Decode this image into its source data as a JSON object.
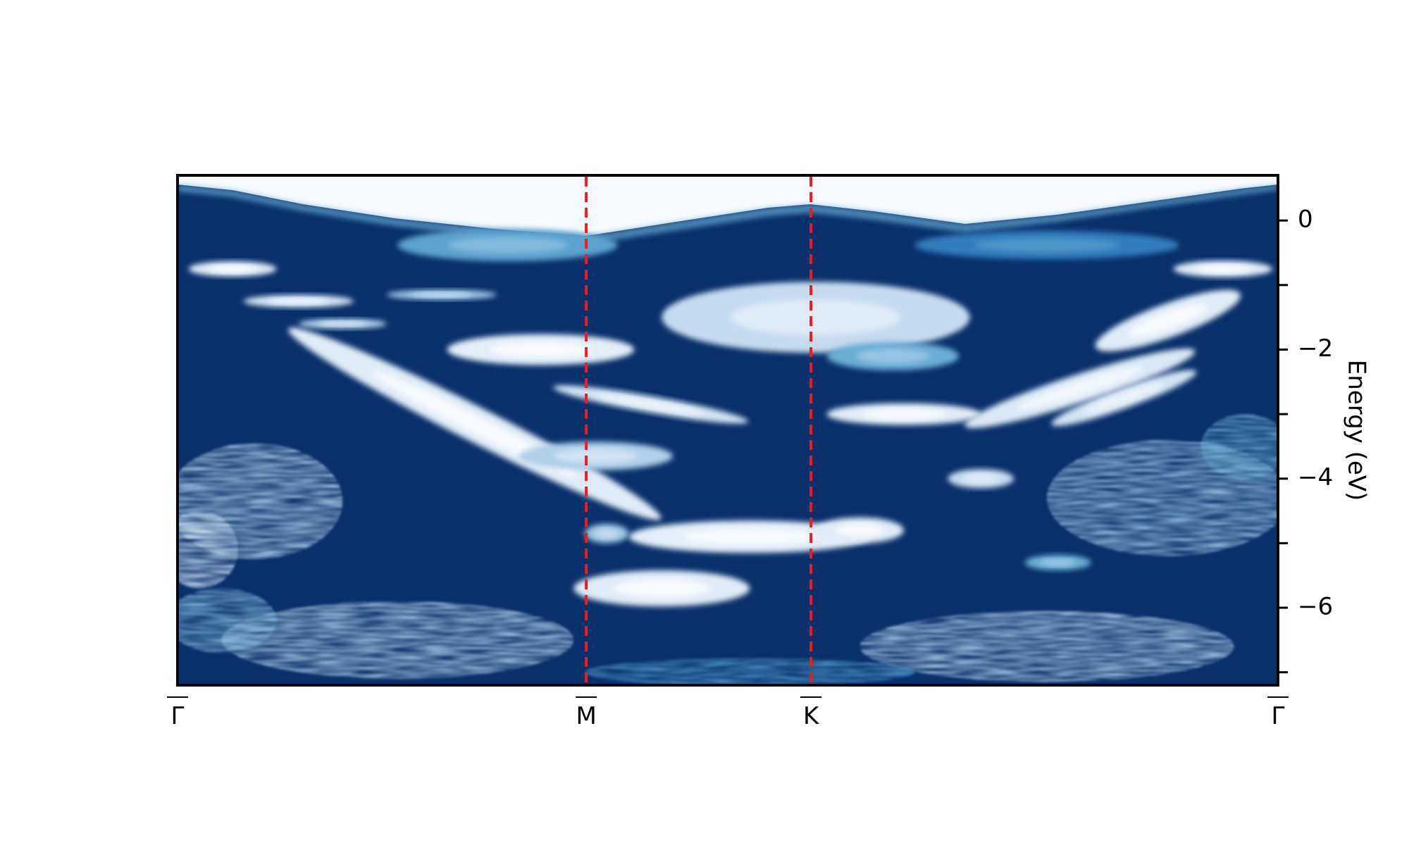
{
  "chart_data": {
    "type": "heatmap",
    "title": "",
    "xlabel": "",
    "ylabel": "Energy (eV)",
    "ylabel_side": "right",
    "colormap": "Blues",
    "x_ticks": [
      {
        "label": "Γ",
        "position": 0.0,
        "overline": true
      },
      {
        "label": "M",
        "position": 0.3714,
        "overline": true
      },
      {
        "label": "K",
        "position": 0.5756,
        "overline": true
      },
      {
        "label": "Γ",
        "position": 1.0,
        "overline": true
      }
    ],
    "y_major_ticks": [
      0,
      -2,
      -4,
      -6
    ],
    "y_major_tick_labels": [
      "0",
      "−2",
      "−4",
      "−6"
    ],
    "y_minor_ticks": [
      -1,
      -3,
      -5,
      -7
    ],
    "ylim": [
      -7.2,
      0.7
    ],
    "high_symbol_lines": {
      "positions": [
        0.3714,
        0.5756
      ],
      "color": "#ee1c1c",
      "style": "dashed"
    },
    "intensity_regions": [
      {
        "cx": 0.05,
        "cy": -0.75,
        "rx": 0.04,
        "ry": 0.12,
        "intensity": 0.9
      },
      {
        "cx": 0.95,
        "cy": -0.75,
        "rx": 0.045,
        "ry": 0.13,
        "intensity": 0.9
      },
      {
        "cx": 0.3,
        "cy": -0.38,
        "rx": 0.1,
        "ry": 0.25,
        "intensity": 0.55
      },
      {
        "cx": 0.79,
        "cy": -0.38,
        "rx": 0.12,
        "ry": 0.22,
        "intensity": 0.4
      },
      {
        "cx": 0.58,
        "cy": -1.5,
        "rx": 0.14,
        "ry": 0.55,
        "intensity": 0.8
      },
      {
        "cx": 0.65,
        "cy": -2.1,
        "rx": 0.06,
        "ry": 0.22,
        "intensity": 0.6
      },
      {
        "cx": 0.33,
        "cy": -2.0,
        "rx": 0.085,
        "ry": 0.24,
        "intensity": 0.92
      },
      {
        "cx": 0.11,
        "cy": -1.25,
        "rx": 0.05,
        "ry": 0.1,
        "intensity": 0.85
      },
      {
        "cx": 0.24,
        "cy": -1.15,
        "rx": 0.05,
        "ry": 0.08,
        "intensity": 0.7
      },
      {
        "cx": 0.15,
        "cy": -1.6,
        "rx": 0.04,
        "ry": 0.08,
        "intensity": 0.75
      },
      {
        "cx": 0.27,
        "cy": -3.15,
        "rx": 0.19,
        "ry": 0.27,
        "intensity": 0.9,
        "rot": 27
      },
      {
        "cx": 0.43,
        "cy": -2.85,
        "rx": 0.09,
        "ry": 0.13,
        "intensity": 0.85,
        "rot": 10
      },
      {
        "cx": 0.66,
        "cy": -3.0,
        "rx": 0.07,
        "ry": 0.17,
        "intensity": 0.9
      },
      {
        "cx": 0.82,
        "cy": -2.6,
        "rx": 0.11,
        "ry": 0.22,
        "intensity": 0.88,
        "rot": -18
      },
      {
        "cx": 0.86,
        "cy": -2.75,
        "rx": 0.07,
        "ry": 0.16,
        "intensity": 0.85,
        "rot": -20
      },
      {
        "cx": 0.9,
        "cy": -1.55,
        "rx": 0.07,
        "ry": 0.26,
        "intensity": 0.9,
        "rot": -20
      },
      {
        "cx": 0.73,
        "cy": -4.0,
        "rx": 0.03,
        "ry": 0.15,
        "intensity": 0.8
      },
      {
        "cx": 0.52,
        "cy": -4.9,
        "rx": 0.11,
        "ry": 0.25,
        "intensity": 0.92
      },
      {
        "cx": 0.62,
        "cy": -4.8,
        "rx": 0.04,
        "ry": 0.2,
        "intensity": 0.9
      },
      {
        "cx": 0.39,
        "cy": -4.85,
        "rx": 0.02,
        "ry": 0.15,
        "intensity": 0.7
      },
      {
        "cx": 0.38,
        "cy": -3.65,
        "rx": 0.07,
        "ry": 0.22,
        "intensity": 0.75
      },
      {
        "cx": 0.44,
        "cy": -5.7,
        "rx": 0.08,
        "ry": 0.28,
        "intensity": 0.9
      },
      {
        "cx": 0.8,
        "cy": -5.3,
        "rx": 0.03,
        "ry": 0.12,
        "intensity": 0.6
      },
      {
        "cx": 0.07,
        "cy": -4.35,
        "rx": 0.08,
        "ry": 0.9,
        "intensity": 0.75,
        "noisy": true
      },
      {
        "cx": 0.02,
        "cy": -5.1,
        "rx": 0.035,
        "ry": 0.6,
        "intensity": 0.8,
        "noisy": true
      },
      {
        "cx": 0.9,
        "cy": -4.3,
        "rx": 0.11,
        "ry": 0.9,
        "intensity": 0.7,
        "noisy": true
      },
      {
        "cx": 0.97,
        "cy": -3.5,
        "rx": 0.04,
        "ry": 0.5,
        "intensity": 0.6,
        "noisy": true
      },
      {
        "cx": 0.2,
        "cy": -6.5,
        "rx": 0.16,
        "ry": 0.6,
        "intensity": 0.75,
        "noisy": true
      },
      {
        "cx": 0.79,
        "cy": -6.6,
        "rx": 0.17,
        "ry": 0.55,
        "intensity": 0.75,
        "noisy": true
      },
      {
        "cx": 0.52,
        "cy": -7.0,
        "rx": 0.15,
        "ry": 0.22,
        "intensity": 0.5,
        "noisy": true
      },
      {
        "cx": 0.04,
        "cy": -6.2,
        "rx": 0.05,
        "ry": 0.5,
        "intensity": 0.65,
        "noisy": true
      }
    ]
  }
}
